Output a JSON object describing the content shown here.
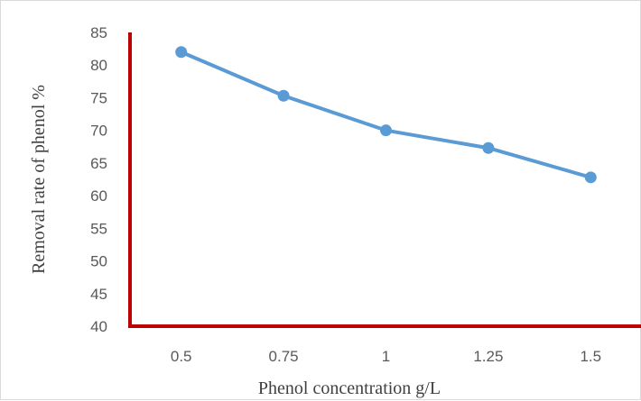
{
  "chart_data": {
    "type": "line",
    "title": "",
    "xlabel": "Phenol concentration g/L",
    "ylabel": "Removal rate of phenol %",
    "categories": [
      "0.5",
      "0.75",
      "1",
      "1.25",
      "1.5"
    ],
    "series": [
      {
        "values": [
          82,
          75.3,
          70,
          67.3,
          62.8
        ],
        "color": "#5b9bd5"
      }
    ],
    "ylim": [
      40,
      85
    ],
    "yticks": [
      40,
      45,
      50,
      55,
      60,
      65,
      70,
      75,
      80,
      85
    ],
    "grid": false,
    "legend": "none",
    "axis_color": "#c00000"
  }
}
